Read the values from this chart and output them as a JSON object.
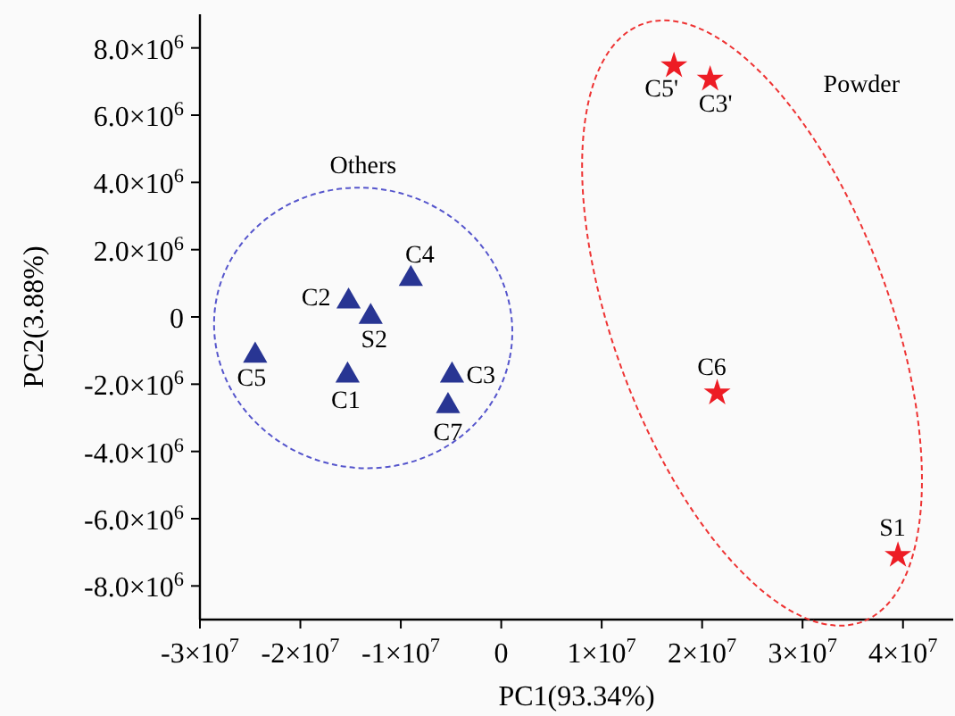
{
  "chart_data": {
    "type": "scatter",
    "xlabel": "PC1(93.34%)",
    "ylabel": "PC2(3.88%)",
    "xlim": [
      -30000000,
      45000000
    ],
    "ylim": [
      -9000000,
      9000000
    ],
    "xticks": [
      {
        "value": -30000000,
        "label": "-3×10$^{7}$"
      },
      {
        "value": -20000000,
        "label": "-2×10$^{7}$"
      },
      {
        "value": -10000000,
        "label": "-1×10$^{7}$"
      },
      0,
      {
        "value": 10000000,
        "label": "1×10$^{7}$"
      },
      {
        "value": 20000000,
        "label": "2×10$^{7}$"
      },
      {
        "value": 30000000,
        "label": "3×10$^{7}$"
      },
      {
        "value": 40000000,
        "label": "4×10$^{7}$"
      }
    ],
    "yticks": [
      {
        "value": -8000000,
        "label": "-8.0×10$^{6}$"
      },
      {
        "value": -6000000,
        "label": "-6.0×10$^{6}$"
      },
      {
        "value": -4000000,
        "label": "-4.0×10$^{6}$"
      },
      {
        "value": -2000000,
        "label": "-2.0×10$^{6}$"
      },
      0,
      {
        "value": 2000000,
        "label": "2.0×10$^{6}$"
      },
      {
        "value": 4000000,
        "label": "4.0×10$^{6}$"
      },
      {
        "value": 6000000,
        "label": "6.0×10$^{6}$"
      },
      {
        "value": 8000000,
        "label": "8.0×10$^{6}$"
      }
    ],
    "grid": false,
    "series": [
      {
        "color": "#283593",
        "marker": "triangle",
        "x": [
          -24500000,
          -15200000,
          -13000000,
          -9000000,
          -15300000,
          -4900000,
          -5300000
        ],
        "values": [
          -1150000,
          460000,
          0,
          1130000,
          -1740000,
          -1740000,
          -2650000
        ]
      },
      {
        "color": "#ed1c24",
        "marker": "star",
        "x": [
          17200000,
          20800000,
          21500000,
          39500000
        ],
        "values": [
          7470000,
          7070000,
          -2260000,
          -7090000
        ]
      }
    ],
    "annotations": [
      {
        "text": "C5",
        "x": -24500000,
        "y": -1150000
      },
      {
        "text": "C2",
        "x": -15200000,
        "y": 460000
      },
      {
        "text": "S2",
        "x": -13000000,
        "y": 0
      },
      {
        "text": "C4",
        "x": -9000000,
        "y": 1130000
      },
      {
        "text": "C1",
        "x": -15300000,
        "y": -1740000
      },
      {
        "text": "C3",
        "x": -4900000,
        "y": -1740000
      },
      {
        "text": "C7",
        "x": -5300000,
        "y": -2650000
      },
      {
        "text": "C5'",
        "x": 17200000,
        "y": 7470000
      },
      {
        "text": "C3'",
        "x": 20800000,
        "y": 7070000
      },
      {
        "text": "C6",
        "x": 21500000,
        "y": -2260000
      },
      {
        "text": "S1",
        "x": 39500000,
        "y": -7090000
      },
      "Others",
      "Powder"
    ]
  }
}
